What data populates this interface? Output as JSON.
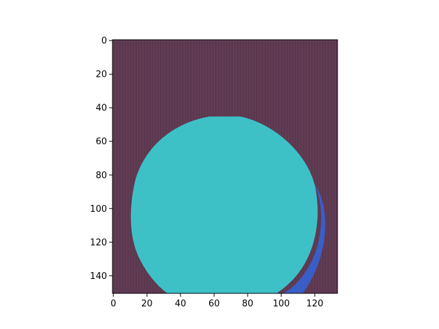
{
  "image": {
    "description_colors": {
      "background_texture": "#5e3a52",
      "mask_region": "#3dc1c7",
      "edge_region": "#3a5ec8"
    }
  },
  "axes": {
    "x": {
      "range": [
        0,
        133
      ],
      "ticks": [
        0,
        20,
        40,
        60,
        80,
        100,
        120
      ],
      "tick_labels": [
        "0",
        "20",
        "40",
        "60",
        "80",
        "100",
        "120"
      ]
    },
    "y": {
      "range": [
        150,
        0
      ],
      "ticks": [
        0,
        20,
        40,
        60,
        80,
        100,
        120,
        140
      ],
      "tick_labels": [
        "0",
        "20",
        "40",
        "60",
        "80",
        "100",
        "120",
        "140"
      ]
    }
  }
}
